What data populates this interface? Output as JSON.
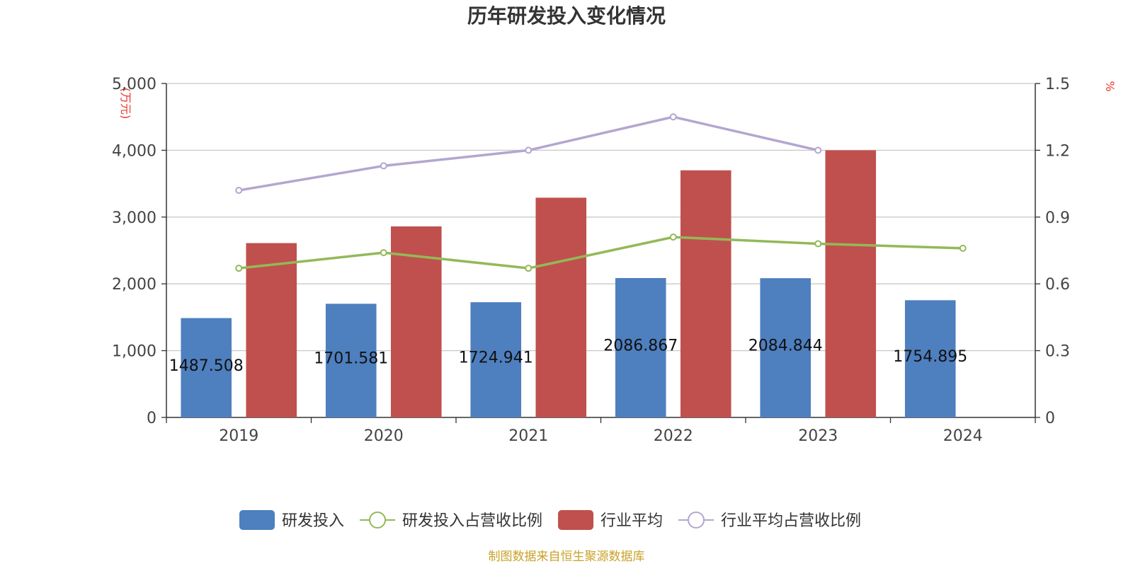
{
  "chart_data": {
    "type": "bar",
    "title": "历年研发投入变化情况",
    "categories": [
      "2019",
      "2020",
      "2021",
      "2022",
      "2023",
      "2024"
    ],
    "left_axis": {
      "unit": "(万元)",
      "ylim": [
        0,
        5000
      ],
      "ticks": [
        0,
        1000,
        2000,
        3000,
        4000,
        5000
      ],
      "tick_labels": [
        "0",
        "1,000",
        "2,000",
        "3,000",
        "4,000",
        "5,000"
      ]
    },
    "right_axis": {
      "unit": "%",
      "ylim": [
        0,
        1.5
      ],
      "ticks": [
        0,
        0.3,
        0.6,
        0.9,
        1.2,
        1.5
      ],
      "tick_labels": [
        "0",
        "0.3",
        "0.6",
        "0.9",
        "1.2",
        "1.5"
      ]
    },
    "grid": true,
    "legend_position": "bottom",
    "series": [
      {
        "name": "研发投入",
        "kind": "bar",
        "axis": "left",
        "color": "#4e7fbf",
        "values": [
          1487.508,
          1701.581,
          1724.941,
          2086.867,
          2084.844,
          1754.895
        ],
        "labels": [
          "1487.508",
          "1701.581",
          "1724.941",
          "2086.867",
          "2084.844",
          "1754.895"
        ]
      },
      {
        "name": "研发投入占营收比例",
        "kind": "line",
        "axis": "right",
        "color": "#93b958",
        "values": [
          0.67,
          0.74,
          0.67,
          0.81,
          0.78,
          0.76
        ]
      },
      {
        "name": "行业平均",
        "kind": "bar",
        "axis": "left",
        "color": "#c0504d",
        "values": [
          2610,
          2860,
          3290,
          3700,
          4000,
          null
        ]
      },
      {
        "name": "行业平均占营收比例",
        "kind": "line",
        "axis": "right",
        "color": "#b3a6d0",
        "values": [
          1.02,
          1.13,
          1.2,
          1.35,
          1.2,
          null
        ]
      }
    ]
  },
  "footer": {
    "source": "制图数据来自恒生聚源数据库"
  }
}
